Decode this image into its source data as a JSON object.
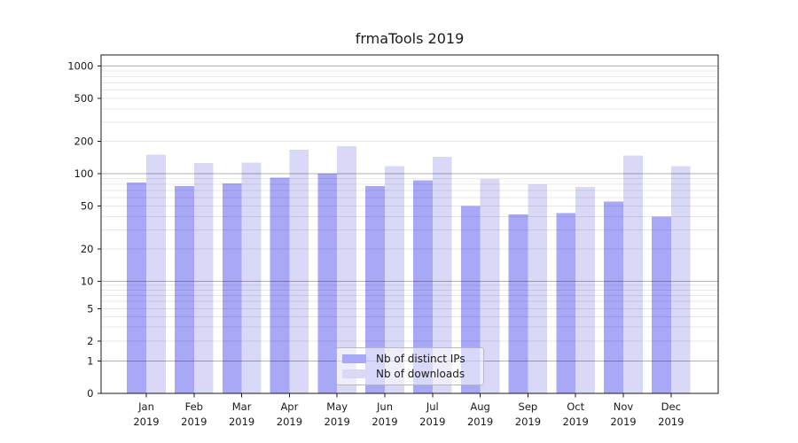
{
  "chart_data": {
    "type": "bar",
    "title": "frmaTools 2019",
    "xlabel": "",
    "ylabel": "",
    "yscale": "log-like (symlog with 0 baseline)",
    "ylim": [
      0,
      1300
    ],
    "grid": "horizontal, major and minor lines, drawn over bars",
    "legend_position": "inside lower-center",
    "yticks": [
      1000,
      500,
      200,
      100,
      50,
      20,
      10,
      5,
      2,
      1,
      0
    ],
    "categories": [
      "Jan 2019",
      "Feb 2019",
      "Mar 2019",
      "Apr 2019",
      "May 2019",
      "Jun 2019",
      "Jul 2019",
      "Aug 2019",
      "Sep 2019",
      "Oct 2019",
      "Nov 2019",
      "Dec 2019"
    ],
    "series": [
      {
        "name": "Nb of distinct IPs",
        "color": "#a8a8f7",
        "values": [
          83,
          77,
          81,
          92,
          100,
          77,
          87,
          50,
          42,
          43,
          55,
          40
        ]
      },
      {
        "name": "Nb of downloads",
        "color": "#d9d9f7",
        "values": [
          150,
          125,
          127,
          167,
          180,
          118,
          144,
          89,
          80,
          75,
          148,
          118
        ]
      }
    ],
    "colors": {
      "background": "#ffffff",
      "spine": "#1a1a1a",
      "text": "#1a1a1a",
      "major_gridline": "rgba(0,0,0,0.30)",
      "minor_gridline": "rgba(0,0,0,0.09)"
    }
  }
}
